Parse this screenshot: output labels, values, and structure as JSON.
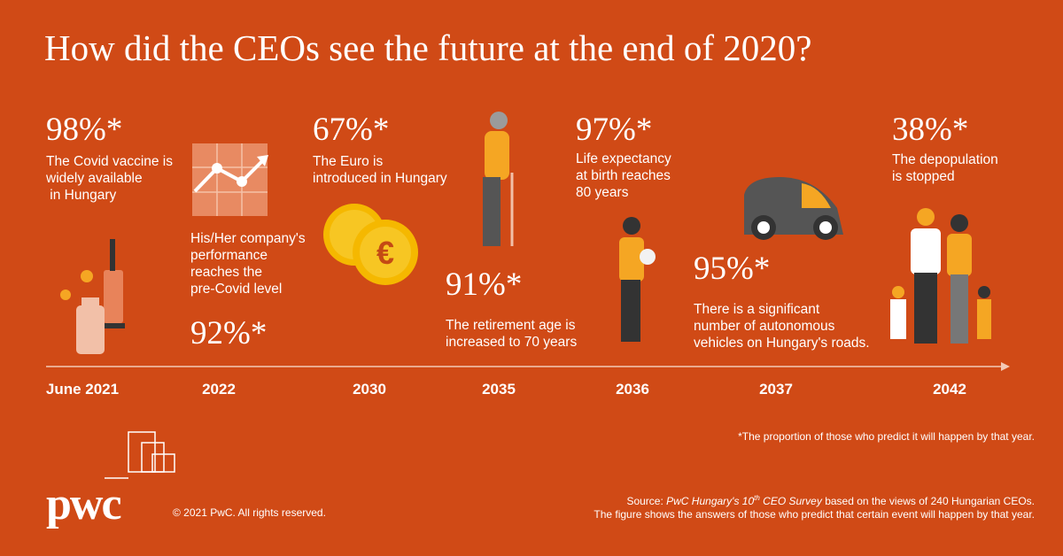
{
  "title": "How did the CEOs see the future at the end of 2020?",
  "timeline": [
    {
      "year": "June 2021",
      "share": "98%*",
      "lines": [
        "The Covid vaccine is",
        "widely available",
        " in Hungary"
      ]
    },
    {
      "year": "2022",
      "share": "92%*",
      "lines": [
        "His/Her company's",
        "performance",
        "reaches the",
        "pre-Covid level"
      ]
    },
    {
      "year": "2030",
      "share": "67%*",
      "lines": [
        "The Euro is",
        "introduced in Hungary"
      ]
    },
    {
      "year": "2035",
      "share": "91%*",
      "lines": [
        "The retirement age is",
        "increased to 70 years"
      ]
    },
    {
      "year": "2036",
      "share": "97%*",
      "lines": [
        "Life expectancy",
        "at birth reaches",
        "80 years"
      ]
    },
    {
      "year": "2037",
      "share": "95%*",
      "lines": [
        "There is a significant",
        "number of autonomous",
        "vehicles on Hungary's roads."
      ]
    },
    {
      "year": "2042",
      "share": "38%*",
      "lines": [
        "The depopulation",
        "is stopped"
      ]
    }
  ],
  "footnote": "*The proportion of those who predict it will happen by that year.",
  "logo": "pwc",
  "copyright": "© 2021 PwC. All rights reserved.",
  "source": {
    "label": "Source:",
    "title_a": "PwC Hungary's 10",
    "title_sup": "th",
    "title_b": "CEO Survey",
    "text": "based on the views of 240 Hungarian CEOs."
  },
  "note": "The figure shows the answers of those who predict that certain event will happen by that year."
}
